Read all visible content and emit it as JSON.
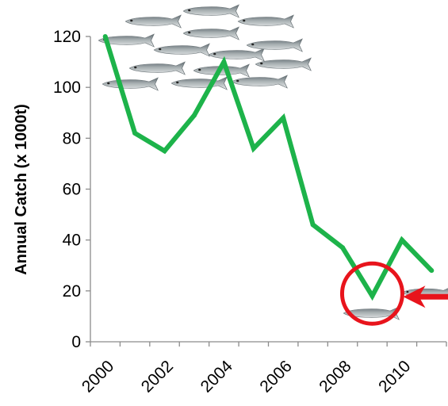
{
  "chart_data": {
    "type": "line",
    "title": "",
    "xlabel": "",
    "ylabel": "Annual Catch (x 1000t)",
    "x": [
      2000,
      2001,
      2002,
      2003,
      2004,
      2005,
      2006,
      2007,
      2008,
      2009,
      2010,
      2011
    ],
    "values": [
      120,
      82,
      75,
      89,
      110,
      76,
      88,
      46,
      37,
      18,
      40,
      28
    ],
    "x_tick_labels": [
      "2000",
      "2002",
      "2004",
      "2006",
      "2008",
      "2010"
    ],
    "y_ticks": [
      0,
      20,
      40,
      60,
      80,
      100,
      120
    ],
    "xlim": [
      1999.5,
      2011.5
    ],
    "ylim": [
      0,
      120
    ],
    "grid": false,
    "legend": "none",
    "colors": {
      "line": "#1db34a",
      "highlight_circle": "#e8141c",
      "arrow": "#e8141c",
      "axis": "#8c8c8c",
      "fish_body": "#a9b1b3",
      "fish_back": "#5f6a70"
    },
    "annotations": {
      "highlight": {
        "x": 2009,
        "y": 18,
        "shape": "circle",
        "icon": "highlight-circle"
      },
      "pointer": {
        "icon": "arrow-left-icon",
        "target_x": 2009,
        "target_y": 18
      },
      "decoration": {
        "icon": "fish-school-icon",
        "count": 14
      }
    }
  }
}
